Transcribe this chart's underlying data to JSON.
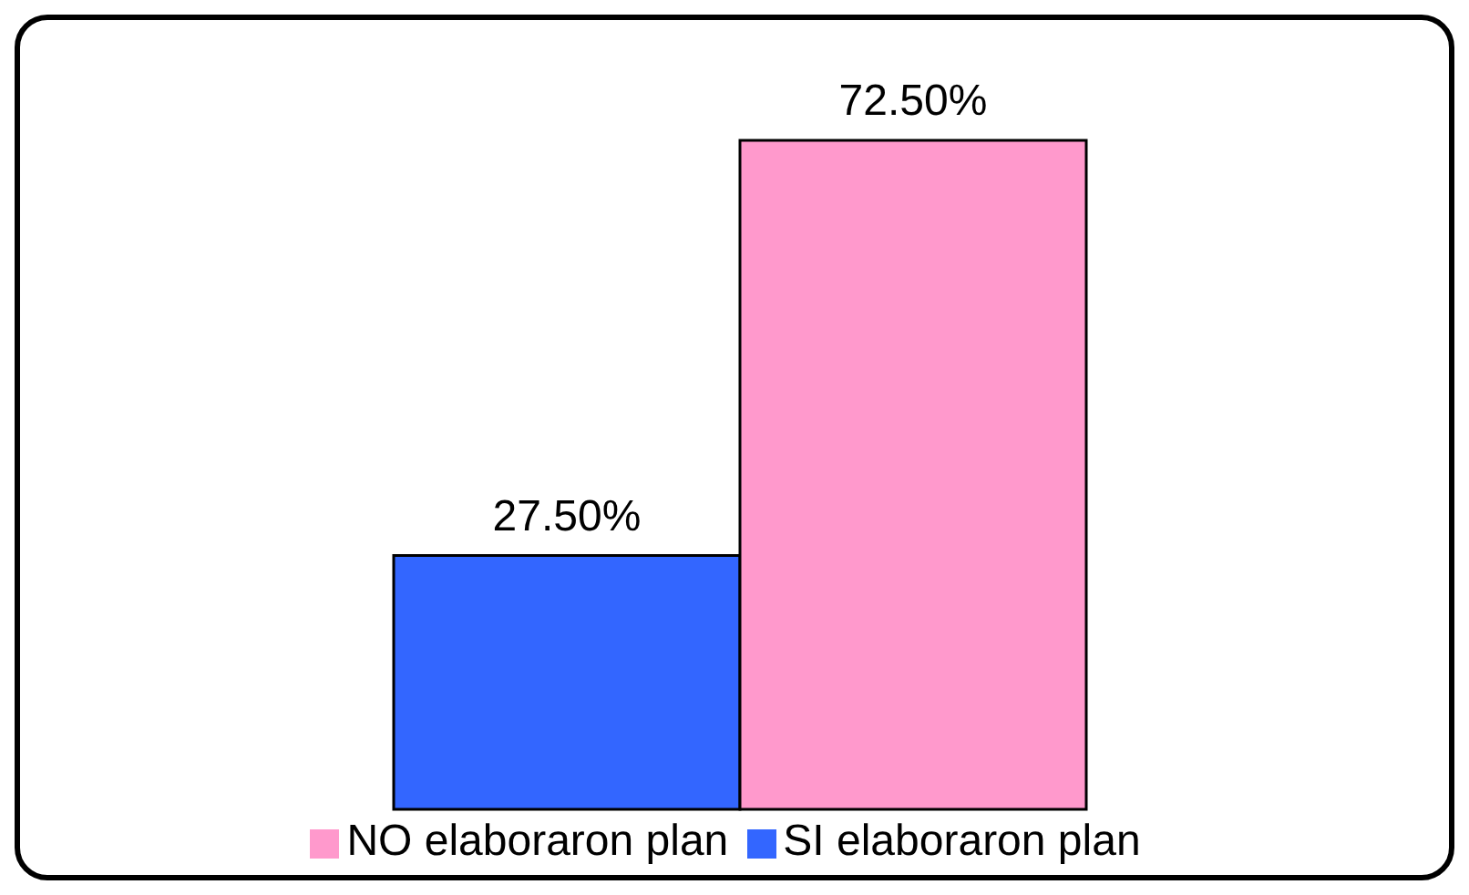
{
  "chart_data": {
    "type": "bar",
    "categories": [
      null
    ],
    "legend": "bottom",
    "series": [
      {
        "name": "SI elaboraron plan",
        "color": "#3366ff",
        "values": [
          27.5
        ],
        "value_labels": [
          "27.50%"
        ]
      },
      {
        "name": "NO elaboraron plan",
        "color": "#ff99cc",
        "values": [
          72.5
        ],
        "value_labels": [
          "72.50%"
        ]
      }
    ]
  }
}
